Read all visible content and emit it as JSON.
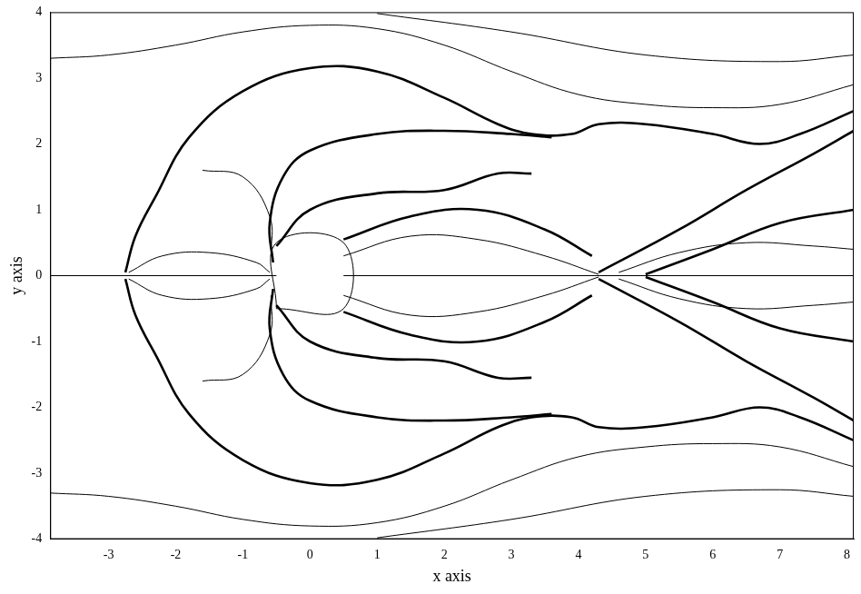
{
  "chart_data": {
    "type": "line",
    "x_label": "x axis",
    "y_label": "y axis",
    "xlim": [
      -3.87,
      8.1
    ],
    "ylim": [
      -4,
      4
    ],
    "xticks": [
      -3,
      -2,
      -1,
      0,
      1,
      2,
      3,
      4,
      5,
      6,
      7,
      8
    ],
    "yticks": [
      -4,
      -3,
      -2,
      -1,
      0,
      1,
      2,
      3,
      4
    ],
    "grid": false,
    "series": [
      {
        "color": "#000000",
        "line_style": "solid",
        "x": [
          -0.5,
          0.5,
          0.5,
          -0.5,
          -0.5
        ],
        "values": [
          -0.5,
          -0.5,
          0.5,
          0.5,
          -0.5
        ]
      },
      {
        "color": "#000000",
        "line_style": "solid",
        "x": [
          -3.87,
          -0.5
        ],
        "values": [
          0,
          0
        ]
      },
      {
        "color": "#000000",
        "line_style": "solid",
        "x": [
          0.5,
          8.1
        ],
        "values": [
          0,
          0
        ]
      },
      {
        "color": "#000000",
        "line_style": "thick",
        "x": [
          -2.75,
          -2.6,
          -2.3,
          -1.8,
          -1.0,
          0,
          1.0,
          2.0,
          2.8,
          3.3,
          3.9,
          4.3,
          5.0,
          6.0,
          6.7,
          7.3,
          8.1
        ],
        "values": [
          0.05,
          0.6,
          1.2,
          2.1,
          2.8,
          3.15,
          3.1,
          2.7,
          2.3,
          2.15,
          2.15,
          2.3,
          2.3,
          2.15,
          2.0,
          2.15,
          2.5
        ]
      },
      {
        "color": "#000000",
        "line_style": "thick",
        "x": [
          -2.75,
          -2.6,
          -2.3,
          -1.8,
          -1.0,
          0,
          1.0,
          2.0,
          2.8,
          3.3,
          3.9,
          4.3,
          5.0,
          6.0,
          6.7,
          7.3,
          8.1
        ],
        "values": [
          -0.05,
          -0.6,
          -1.2,
          -2.1,
          -2.8,
          -3.15,
          -3.1,
          -2.7,
          -2.3,
          -2.15,
          -2.15,
          -2.3,
          -2.3,
          -2.15,
          -2.0,
          -2.15,
          -2.5
        ]
      },
      {
        "color": "#000000",
        "line_style": "thick",
        "x": [
          -0.55,
          -0.6,
          -0.4,
          0,
          1,
          2,
          3,
          3.6
        ],
        "values": [
          0.2,
          0.8,
          1.5,
          1.9,
          2.15,
          2.2,
          2.15,
          2.1
        ]
      },
      {
        "color": "#000000",
        "line_style": "thick",
        "x": [
          -0.55,
          -0.6,
          -0.4,
          0,
          1,
          2,
          3,
          3.6
        ],
        "values": [
          -0.2,
          -0.8,
          -1.5,
          -1.9,
          -2.15,
          -2.2,
          -2.15,
          -2.1
        ]
      },
      {
        "color": "#000000",
        "line_style": "thick",
        "x": [
          -0.5,
          0,
          1,
          2,
          2.8,
          3.3
        ],
        "values": [
          0.45,
          1.0,
          1.25,
          1.3,
          1.55,
          1.55
        ]
      },
      {
        "color": "#000000",
        "line_style": "thick",
        "x": [
          -0.5,
          0,
          1,
          2,
          2.8,
          3.3
        ],
        "values": [
          -0.45,
          -1.0,
          -1.25,
          -1.3,
          -1.55,
          -1.55
        ]
      },
      {
        "color": "#000000",
        "line_style": "thick",
        "x": [
          0.5,
          1.5,
          2.5,
          3.5,
          4.2
        ],
        "values": [
          0.55,
          0.9,
          1.0,
          0.7,
          0.3
        ]
      },
      {
        "color": "#000000",
        "line_style": "thick",
        "x": [
          0.5,
          1.5,
          2.5,
          3.5,
          4.2
        ],
        "values": [
          -0.55,
          -0.9,
          -1.0,
          -0.7,
          -0.3
        ]
      },
      {
        "color": "#000000",
        "line_style": "thick",
        "x": [
          4.3,
          5.5,
          6.5,
          7.5,
          8.1
        ],
        "values": [
          0.05,
          0.7,
          1.3,
          1.85,
          2.2
        ]
      },
      {
        "color": "#000000",
        "line_style": "thick",
        "x": [
          4.3,
          5.5,
          6.5,
          7.5,
          8.1
        ],
        "values": [
          -0.05,
          -0.7,
          -1.3,
          -1.85,
          -2.2
        ]
      },
      {
        "color": "#000000",
        "line_style": "thick",
        "x": [
          5.0,
          6.0,
          7.0,
          8.1
        ],
        "values": [
          0.02,
          0.4,
          0.8,
          1.0
        ]
      },
      {
        "color": "#000000",
        "line_style": "thick",
        "x": [
          5.0,
          6.0,
          7.0,
          8.1
        ],
        "values": [
          -0.02,
          -0.4,
          -0.8,
          -1.0
        ]
      },
      {
        "color": "#000000",
        "line_style": "solid",
        "x": [
          -3.87,
          -3,
          -2,
          -1,
          0,
          1,
          2,
          3,
          4,
          5,
          6,
          7,
          8.1
        ],
        "values": [
          3.3,
          3.35,
          3.5,
          3.7,
          3.8,
          3.75,
          3.5,
          3.1,
          2.75,
          2.6,
          2.55,
          2.6,
          2.9
        ]
      },
      {
        "color": "#000000",
        "line_style": "solid",
        "x": [
          -3.87,
          -3,
          -2,
          -1,
          0,
          1,
          2,
          3,
          4,
          5,
          6,
          7,
          8.1
        ],
        "values": [
          -3.3,
          -3.35,
          -3.5,
          -3.7,
          -3.8,
          -3.75,
          -3.5,
          -3.1,
          -2.75,
          -2.6,
          -2.55,
          -2.6,
          -2.9
        ]
      },
      {
        "color": "#000000",
        "line_style": "solid",
        "x": [
          1,
          3,
          5,
          7,
          8.1
        ],
        "values": [
          3.98,
          3.7,
          3.35,
          3.25,
          3.35
        ]
      },
      {
        "color": "#000000",
        "line_style": "solid",
        "x": [
          1,
          3,
          5,
          7,
          8.1
        ],
        "values": [
          -3.98,
          -3.7,
          -3.35,
          -3.25,
          -3.35
        ]
      },
      {
        "color": "#000000",
        "line_style": "solid",
        "x": [
          -2.7,
          -2.2,
          -1.5,
          -0.8,
          -0.6
        ],
        "values": [
          0.05,
          0.3,
          0.35,
          0.2,
          0.05
        ]
      },
      {
        "color": "#000000",
        "line_style": "solid",
        "x": [
          -2.7,
          -2.2,
          -1.5,
          -0.8,
          -0.6
        ],
        "values": [
          -0.05,
          -0.3,
          -0.35,
          -0.2,
          -0.05
        ]
      },
      {
        "color": "#000000",
        "line_style": "solid",
        "x": [
          -1.6,
          -1.0,
          -0.6,
          -0.58
        ],
        "values": [
          1.6,
          1.5,
          0.9,
          0.3
        ]
      },
      {
        "color": "#000000",
        "line_style": "solid",
        "x": [
          -1.6,
          -1.0,
          -0.6,
          -0.58
        ],
        "values": [
          -1.6,
          -1.5,
          -0.9,
          -0.3
        ]
      },
      {
        "color": "#000000",
        "line_style": "solid",
        "x": [
          0.5,
          1.5,
          2.5,
          3.5,
          4.3
        ],
        "values": [
          0.3,
          0.6,
          0.55,
          0.3,
          0.02
        ]
      },
      {
        "color": "#000000",
        "line_style": "solid",
        "x": [
          0.5,
          1.5,
          2.5,
          3.5,
          4.3
        ],
        "values": [
          -0.3,
          -0.6,
          -0.55,
          -0.3,
          -0.02
        ]
      },
      {
        "color": "#000000",
        "line_style": "solid",
        "x": [
          4.6,
          5.5,
          6.5,
          7.5,
          8.1
        ],
        "values": [
          0.05,
          0.35,
          0.5,
          0.45,
          0.4
        ]
      },
      {
        "color": "#000000",
        "line_style": "solid",
        "x": [
          4.6,
          5.5,
          6.5,
          7.5,
          8.1
        ],
        "values": [
          -0.05,
          -0.35,
          -0.5,
          -0.45,
          -0.4
        ]
      }
    ]
  }
}
